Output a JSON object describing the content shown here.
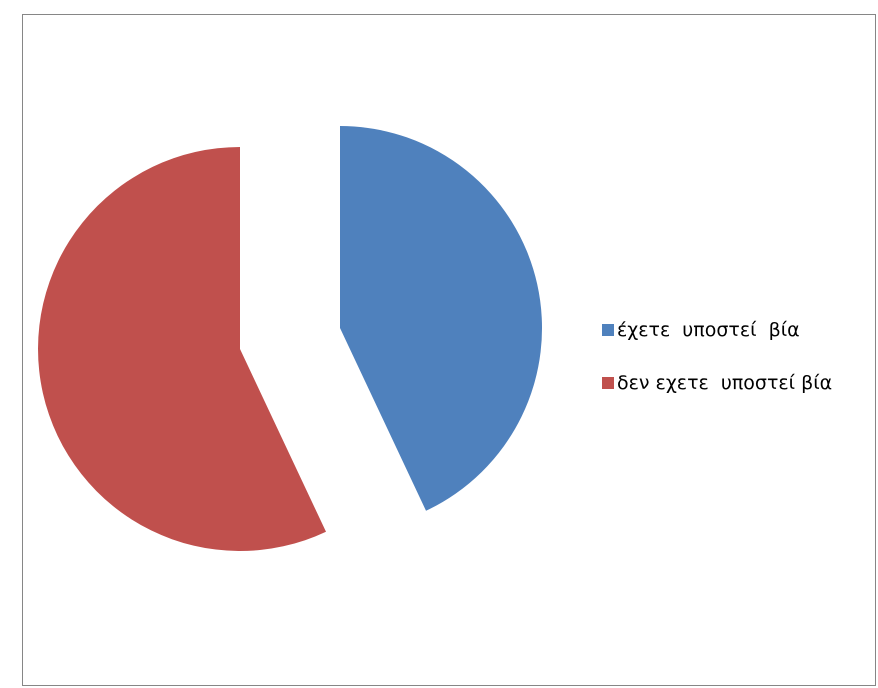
{
  "chart_data": {
    "type": "pie",
    "title": "",
    "exploded": true,
    "start_angle_deg": 0,
    "direction": "clockwise",
    "categories": [
      "έχετε  υποστεί  βία",
      "δεν εχετε  υποστεί βία"
    ],
    "values": [
      43,
      57
    ],
    "colors": [
      "#4F81BD",
      "#C0504D"
    ],
    "legend": {
      "position": "right",
      "entries": [
        "έχετε  υποστεί  βία",
        "δεν εχετε  υποστεί βία"
      ]
    }
  }
}
